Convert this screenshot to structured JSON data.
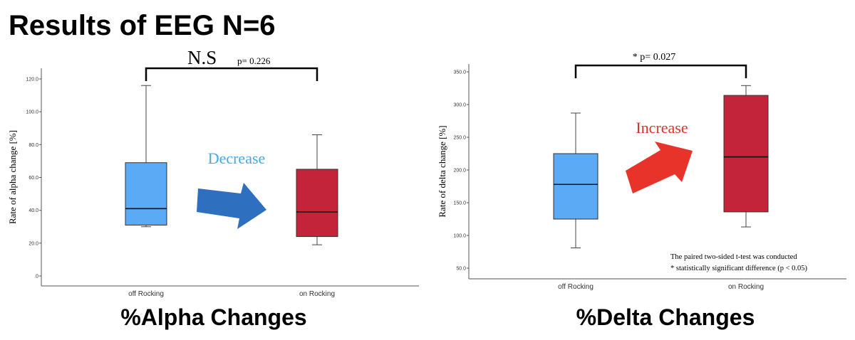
{
  "title": "Results of EEG N=6",
  "colors": {
    "off": "#5aaaf5",
    "on": "#c4243a",
    "arrow_decrease": "#2e6fbf",
    "arrow_increase": "#e8332a",
    "decrease_text": "#4aa8e0",
    "increase_text": "#d9352b"
  },
  "chart_data": [
    {
      "type": "box",
      "panel_title": "%Alpha Changes",
      "ylabel": "Rate of alpha change [%]",
      "categories": [
        "off Rocking",
        "on Rocking"
      ],
      "yticks": [
        ".0",
        "20.0",
        "40.0",
        "60.0",
        "80.0",
        "100.0",
        "120.0"
      ],
      "ylim": [
        0,
        120
      ],
      "boxes": [
        {
          "category": "off Rocking",
          "min": 30,
          "q1": 31,
          "median": 41,
          "q3": 69,
          "max": 116
        },
        {
          "category": "on Rocking",
          "min": 19,
          "q1": 24,
          "median": 39,
          "q3": 65,
          "max": 86
        }
      ],
      "significance": {
        "label": "N.S",
        "p_text": "p= 0.226"
      },
      "trend_label": "Decrease",
      "trend_icon": "arrow-right-down-icon"
    },
    {
      "type": "box",
      "panel_title": "%Delta Changes",
      "ylabel": "Rate of delta change [%]",
      "categories": [
        "off Rocking",
        "on Rocking"
      ],
      "yticks": [
        "50.0",
        "100.0",
        "150.0",
        "200.0",
        "250.0",
        "300.0",
        "350.0"
      ],
      "ylim": [
        50,
        350
      ],
      "boxes": [
        {
          "category": "off Rocking",
          "min": 81,
          "q1": 125,
          "median": 178,
          "q3": 225,
          "max": 287
        },
        {
          "category": "on Rocking",
          "min": 113,
          "q1": 136,
          "median": 220,
          "q3": 314,
          "max": 329
        }
      ],
      "significance": {
        "label": "* p= 0.027"
      },
      "trend_label": "Increase",
      "trend_icon": "arrow-right-up-icon",
      "notes": [
        "The paired two-sided t-test was conducted",
        "* statistically significant difference (p < 0.05)"
      ]
    }
  ]
}
